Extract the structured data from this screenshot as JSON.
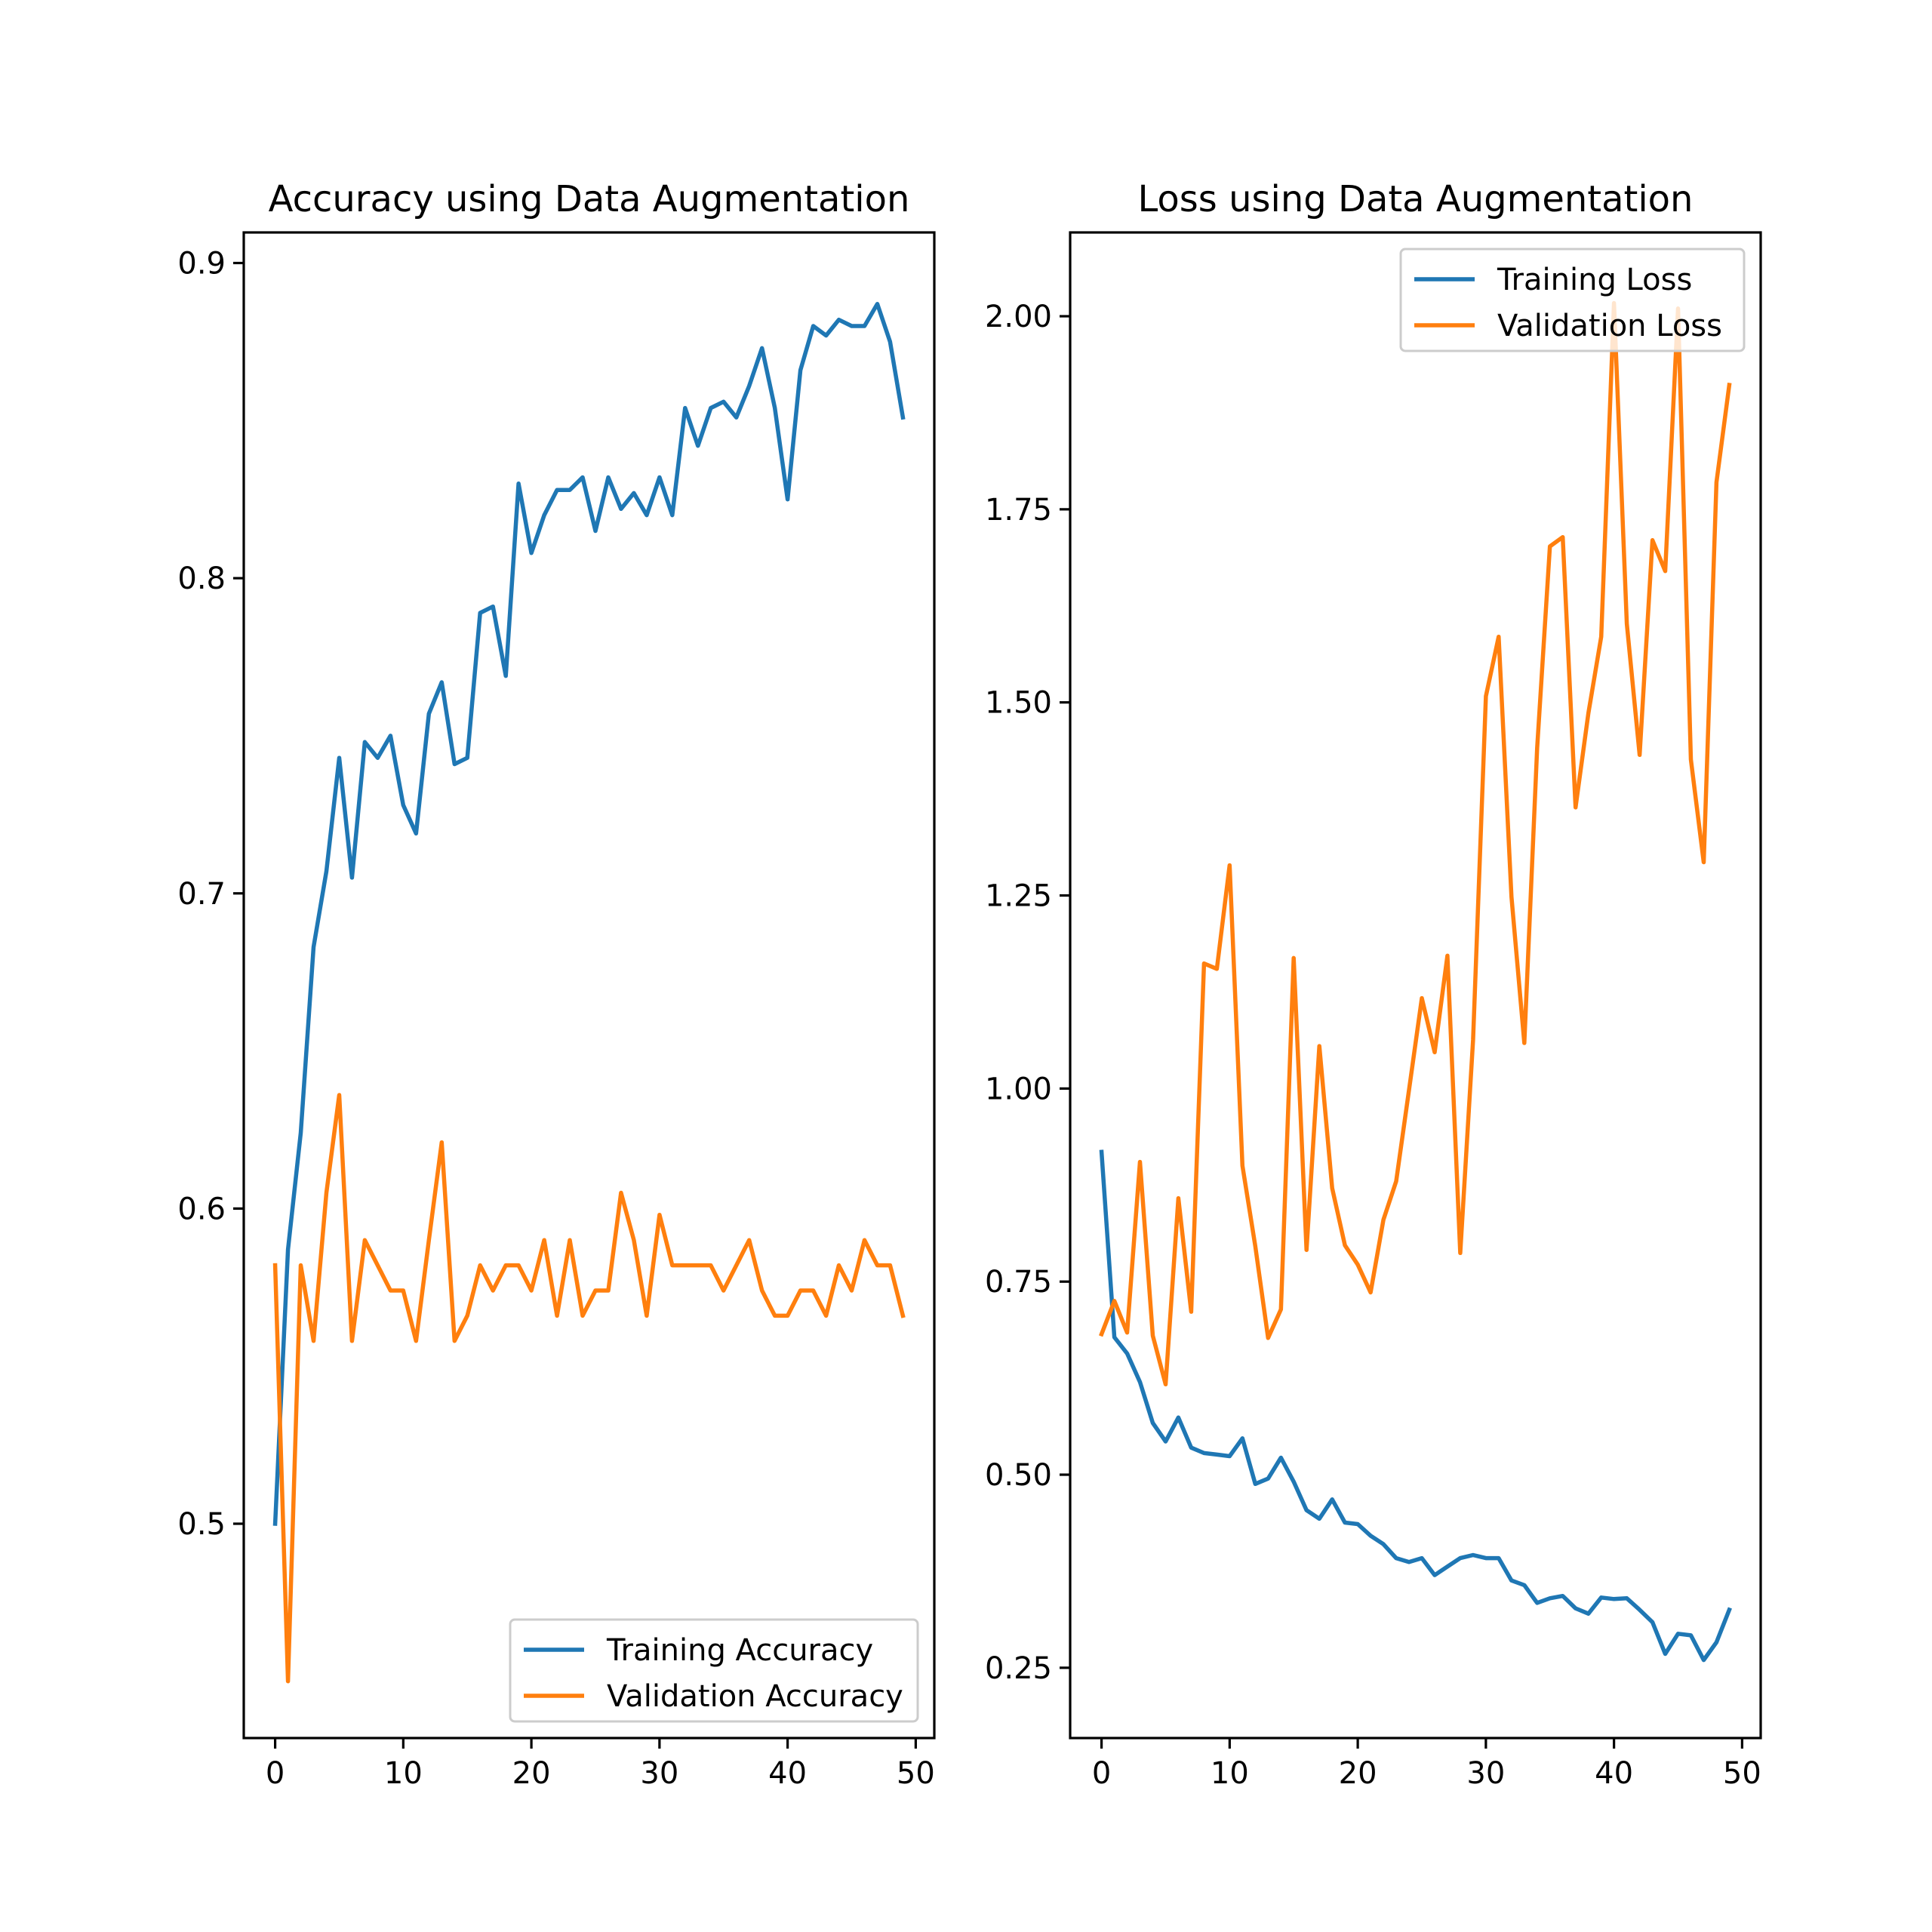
{
  "chart_data": [
    {
      "type": "line",
      "title": "Accuracy using Data Augmentation",
      "xlabel": "",
      "ylabel": "",
      "xlim": [
        -2.45,
        51.45
      ],
      "ylim": [
        0.432,
        0.9097
      ],
      "xticks": [
        0,
        10,
        20,
        30,
        40,
        50
      ],
      "yticks": [
        0.5,
        0.6,
        0.7,
        0.8,
        0.9
      ],
      "ytick_labels": [
        "0.5",
        "0.6",
        "0.7",
        "0.8",
        "0.9"
      ],
      "grid": false,
      "legend_position": "lower-right",
      "series": [
        {
          "name": "Training Accuracy",
          "color": "#1f77b4",
          "values": [
            0.5,
            0.587,
            0.624,
            0.683,
            0.707,
            0.743,
            0.705,
            0.748,
            0.743,
            0.75,
            0.728,
            0.719,
            0.757,
            0.767,
            0.741,
            0.743,
            0.789,
            0.791,
            0.769,
            0.83,
            0.808,
            0.82,
            0.828,
            0.828,
            0.832,
            0.815,
            0.832,
            0.822,
            0.827,
            0.82,
            0.832,
            0.82,
            0.854,
            0.842,
            0.854,
            0.856,
            0.851,
            0.861,
            0.873,
            0.854,
            0.825,
            0.866,
            0.88,
            0.877,
            0.882,
            0.88,
            0.88,
            0.887,
            0.875,
            0.851
          ]
        },
        {
          "name": "Validation Accuracy",
          "color": "#ff7f0e",
          "values": [
            0.582,
            0.45,
            0.582,
            0.558,
            0.605,
            0.636,
            0.558,
            0.59,
            0.582,
            0.574,
            0.574,
            0.558,
            0.59,
            0.621,
            0.558,
            0.566,
            0.582,
            0.574,
            0.582,
            0.582,
            0.574,
            0.59,
            0.566,
            0.59,
            0.566,
            0.574,
            0.574,
            0.605,
            0.59,
            0.566,
            0.598,
            0.582,
            0.582,
            0.582,
            0.582,
            0.574,
            0.582,
            0.59,
            0.574,
            0.566,
            0.566,
            0.574,
            0.574,
            0.566,
            0.582,
            0.574,
            0.59,
            0.582,
            0.582,
            0.566
          ]
        }
      ]
    },
    {
      "type": "line",
      "title": "Loss using Data Augmentation",
      "xlabel": "",
      "ylabel": "",
      "xlim": [
        -2.45,
        51.45
      ],
      "ylim": [
        0.159,
        2.1085
      ],
      "xticks": [
        0,
        10,
        20,
        30,
        40,
        50
      ],
      "yticks": [
        0.25,
        0.5,
        0.75,
        1.0,
        1.25,
        1.5,
        1.75,
        2.0
      ],
      "ytick_labels": [
        "0.25",
        "0.50",
        "0.75",
        "1.00",
        "1.25",
        "1.50",
        "1.75",
        "2.00"
      ],
      "grid": false,
      "legend_position": "upper-right",
      "series": [
        {
          "name": "Training Loss",
          "color": "#1f77b4",
          "values": [
            0.918,
            0.678,
            0.657,
            0.62,
            0.567,
            0.543,
            0.574,
            0.535,
            0.528,
            0.526,
            0.524,
            0.547,
            0.488,
            0.495,
            0.522,
            0.491,
            0.454,
            0.443,
            0.468,
            0.438,
            0.436,
            0.421,
            0.41,
            0.392,
            0.387,
            0.392,
            0.37,
            0.381,
            0.392,
            0.396,
            0.392,
            0.392,
            0.363,
            0.357,
            0.334,
            0.34,
            0.343,
            0.327,
            0.32,
            0.341,
            0.339,
            0.34,
            0.325,
            0.309,
            0.268,
            0.294,
            0.292,
            0.26,
            0.283,
            0.325
          ]
        },
        {
          "name": "Validation Loss",
          "color": "#ff7f0e",
          "values": [
            0.682,
            0.725,
            0.684,
            0.905,
            0.68,
            0.617,
            0.858,
            0.711,
            1.162,
            1.155,
            1.289,
            0.9,
            0.796,
            0.677,
            0.714,
            1.169,
            0.791,
            1.055,
            0.871,
            0.797,
            0.772,
            0.736,
            0.83,
            0.88,
            0.998,
            1.117,
            1.047,
            1.172,
            0.787,
            1.063,
            1.508,
            1.585,
            1.248,
            1.059,
            1.441,
            1.702,
            1.714,
            1.364,
            1.486,
            1.585,
            2.017,
            1.602,
            1.432,
            1.71,
            1.67,
            2.01,
            1.426,
            1.293,
            1.785,
            1.911
          ]
        }
      ]
    }
  ]
}
